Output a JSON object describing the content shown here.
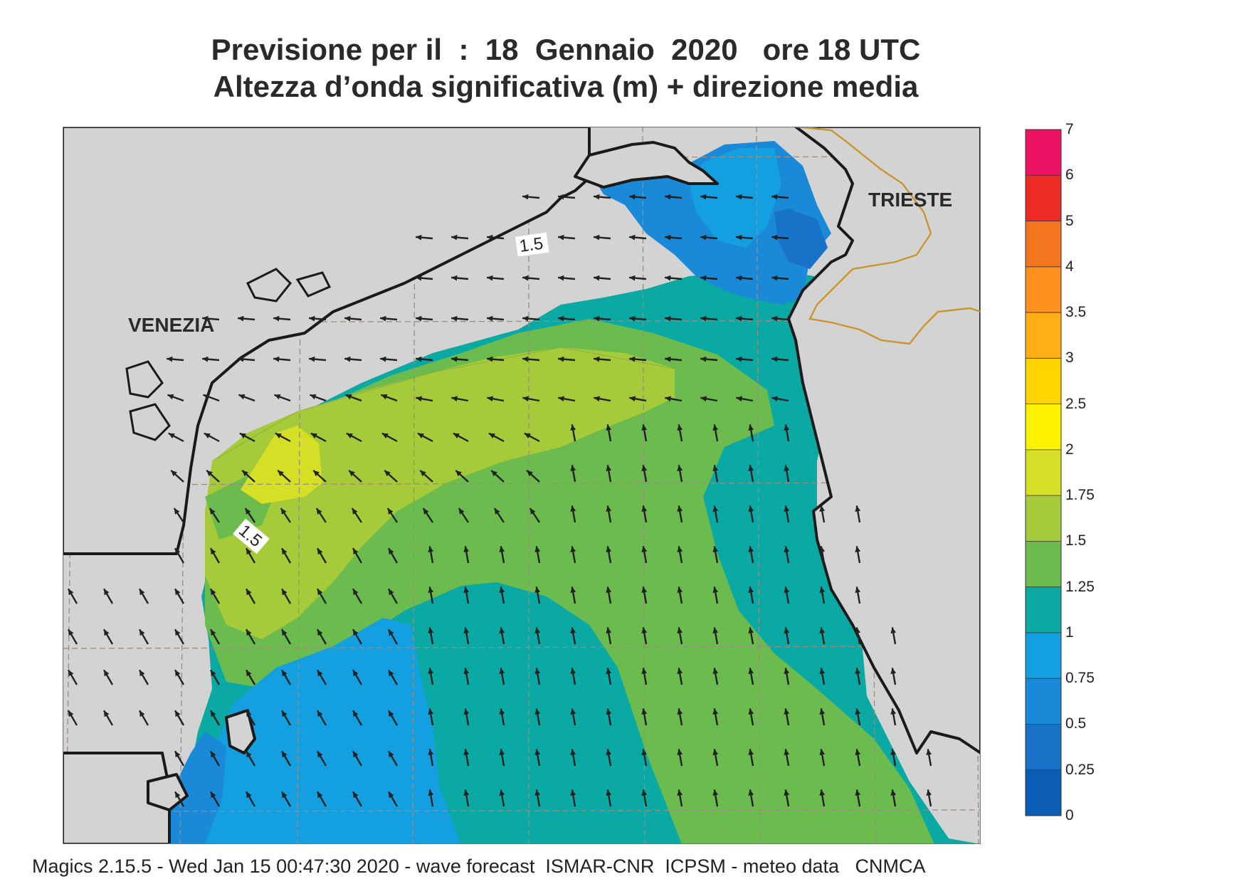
{
  "title": {
    "line1": "Previsione per il  :  18  Gennaio  2020   ore 18 UTC",
    "line2": "Altezza d’onda significativa (m) + direzione media"
  },
  "map": {
    "cities": [
      {
        "name": "VENEZIA"
      },
      {
        "name": "TRIESTE"
      }
    ],
    "contour_labels": [
      {
        "value": "1.5"
      },
      {
        "value": "1.5"
      }
    ],
    "field": "significant wave height",
    "colors": {
      "land": "#d3d3d3",
      "coast": "#1a1a1a",
      "border": "#c9952e",
      "grid": "#9a8c80",
      "arrow": "#222222"
    }
  },
  "legend": {
    "levels": [
      "0",
      "0.25",
      "0.5",
      "0.75",
      "1",
      "1.25",
      "1.5",
      "1.75",
      "2",
      "2.5",
      "3",
      "3.5",
      "4",
      "5",
      "6",
      "7"
    ],
    "colors": [
      "#0a5cb4",
      "#1873c8",
      "#1a8ad8",
      "#149fe0",
      "#0aa9a3",
      "#6cbb4e",
      "#a6cb3a",
      "#d4df26",
      "#fff200",
      "#ffd400",
      "#ffaf14",
      "#ff8f1e",
      "#f47520",
      "#ee2a24",
      "#ee1264"
    ]
  },
  "footer": "Magics 2.15.5 - Wed Jan 15 00:47:30 2020 - wave forecast  ISMAR-CNR  ICPSM - meteo data   CNMCA"
}
